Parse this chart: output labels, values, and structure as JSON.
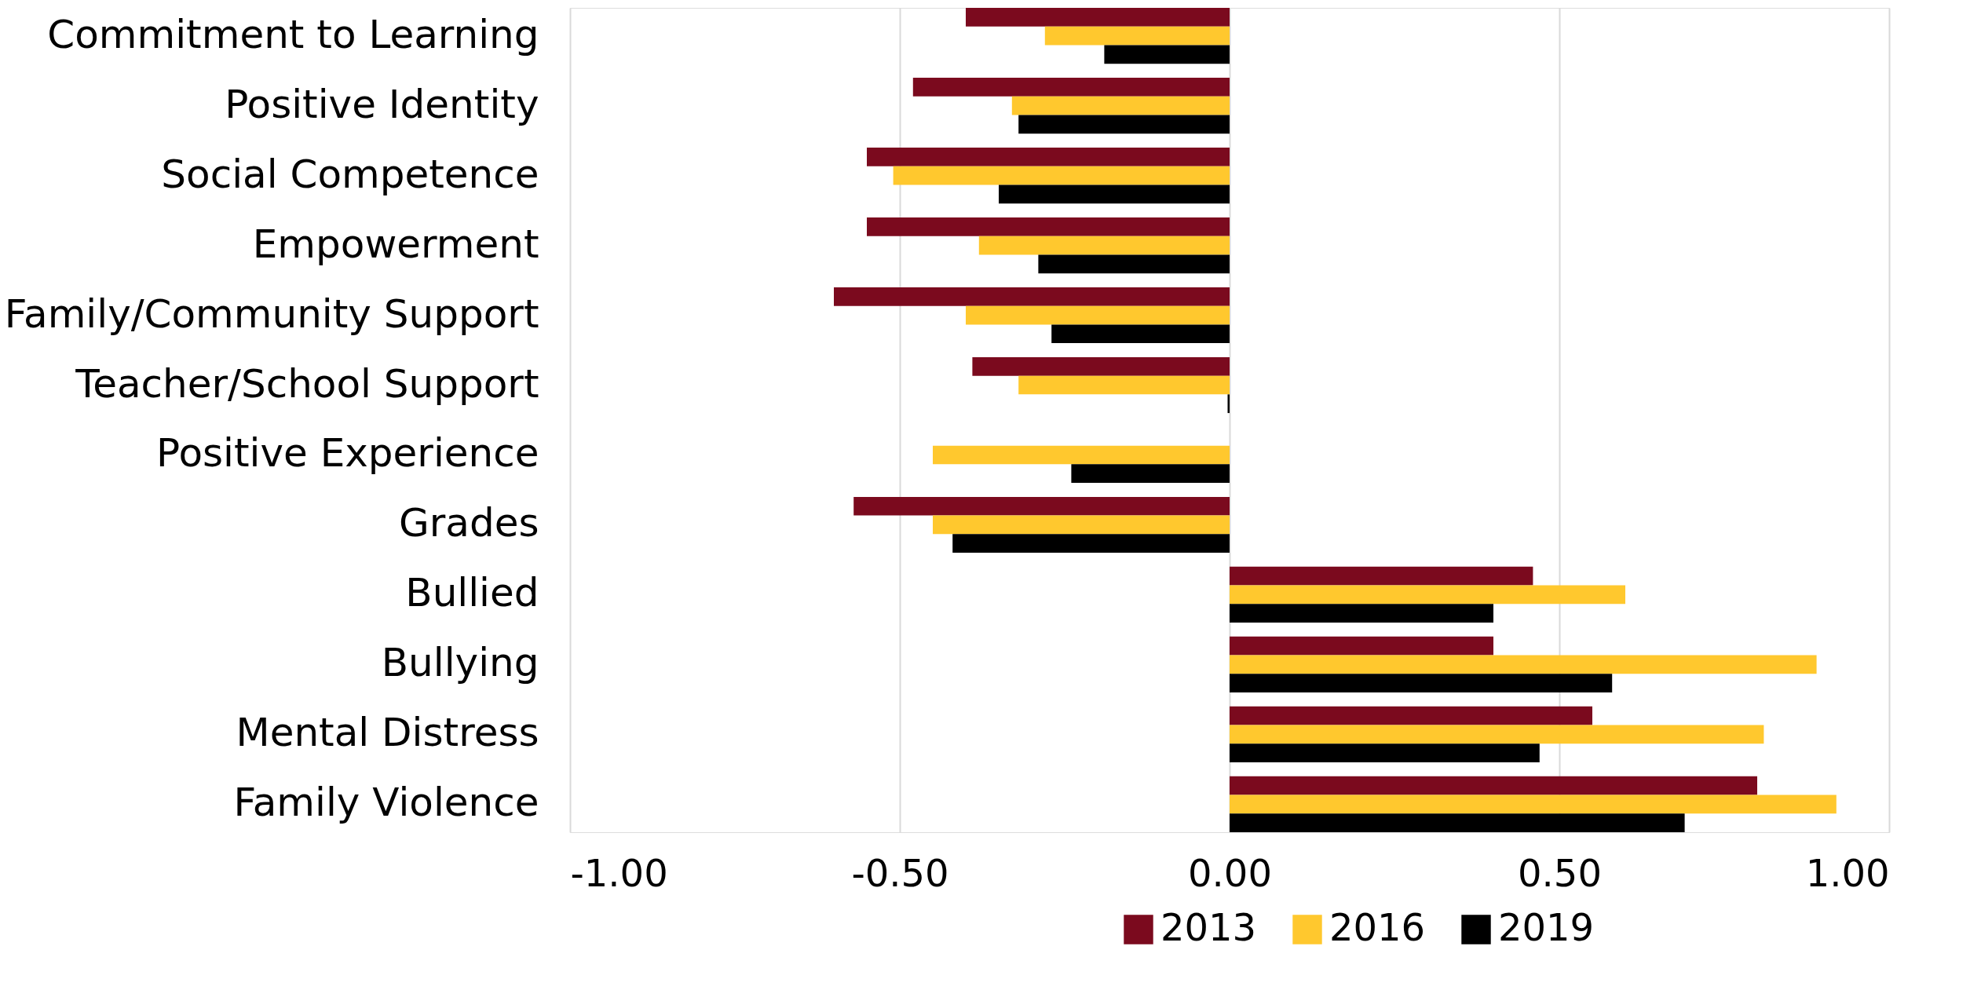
{
  "chart_data": {
    "type": "bar",
    "orientation": "horizontal",
    "categories": [
      "Commitment to Learning",
      "Positive Identity",
      "Social Competence",
      "Empowerment",
      "Family/Community Support",
      "Teacher/School Support",
      "Positive Experience",
      "Grades",
      "Bullied",
      "Bullying",
      "Mental Distress",
      "Family Violence"
    ],
    "series": [
      {
        "name": "2013",
        "color": "#7b0a1e",
        "values": [
          -0.4,
          -0.48,
          -0.55,
          -0.55,
          -0.6,
          -0.39,
          null,
          -0.57,
          0.46,
          0.4,
          0.55,
          0.8
        ]
      },
      {
        "name": "2016",
        "color": "#ffc82e",
        "values": [
          -0.28,
          -0.33,
          -0.51,
          -0.38,
          -0.4,
          -0.32,
          -0.45,
          -0.45,
          0.6,
          0.89,
          0.81,
          0.92
        ]
      },
      {
        "name": "2019",
        "color": "#000000",
        "values": [
          -0.19,
          -0.32,
          -0.35,
          -0.29,
          -0.27,
          -0.003,
          -0.24,
          -0.42,
          0.4,
          0.58,
          0.47,
          0.69
        ]
      }
    ],
    "xlim": [
      -1,
      1
    ],
    "xticks": [
      {
        "value": -1,
        "label": "-1.00"
      },
      {
        "value": -0.5,
        "label": "-0.50"
      },
      {
        "value": 0,
        "label": "0.00"
      },
      {
        "value": 0.5,
        "label": "0.50"
      },
      {
        "value": 1,
        "label": "1.00"
      }
    ],
    "grid": "x",
    "legend": "bottom"
  }
}
